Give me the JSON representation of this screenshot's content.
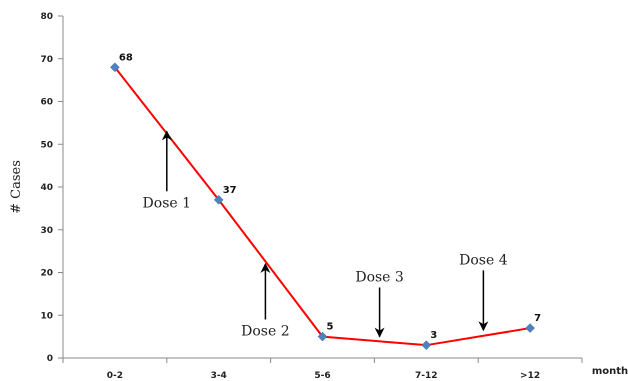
{
  "chart_data": {
    "type": "line",
    "categories": [
      "0-2",
      "3-4",
      "5-6",
      "7-12",
      ">12"
    ],
    "values": [
      68,
      37,
      5,
      3,
      7
    ],
    "data_labels": [
      "68",
      "37",
      "5",
      "3",
      "7"
    ],
    "xlabel": "month",
    "ylabel": "# Cases",
    "ylim": [
      0,
      80
    ],
    "yticks": [
      0,
      10,
      20,
      30,
      40,
      50,
      60,
      70,
      80
    ],
    "grid": false,
    "line_color": "#ff0000",
    "marker_color": "#4f81bd",
    "annotations": [
      {
        "text": "Dose 1",
        "x": 0.5,
        "y_tail": 39,
        "y_head": 53
      },
      {
        "text": "Dose 2",
        "x": 1.45,
        "y_tail": 9,
        "y_head": 22
      },
      {
        "text": "Dose 3",
        "x": 2.55,
        "y_tail": 16.5,
        "y_head": 5
      },
      {
        "text": "Dose 4",
        "x": 3.55,
        "y_tail": 20.5,
        "y_head": 6.5
      }
    ]
  }
}
